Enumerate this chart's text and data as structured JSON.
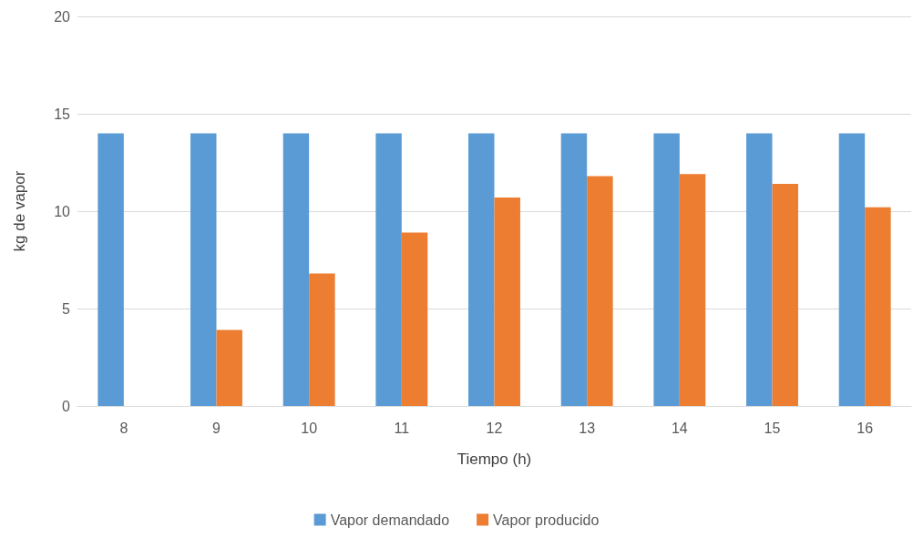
{
  "chart_data": {
    "type": "bar",
    "xlabel": "Tiempo (h)",
    "ylabel": "kg de vapor",
    "categories": [
      "8",
      "9",
      "10",
      "11",
      "12",
      "13",
      "14",
      "15",
      "16"
    ],
    "series": [
      {
        "name": "Vapor demandado",
        "color": "#5b9bd5",
        "values": [
          14,
          14,
          14,
          14,
          14,
          14,
          14,
          14,
          14
        ]
      },
      {
        "name": "Vapor producido",
        "color": "#ed7d31",
        "values": [
          null,
          3.9,
          6.8,
          8.9,
          10.7,
          11.8,
          11.9,
          11.4,
          10.2
        ]
      }
    ],
    "ylim": [
      0,
      20
    ],
    "yticks": [
      0,
      5,
      10,
      15,
      20
    ],
    "grid": "y",
    "legend": "bottom"
  }
}
